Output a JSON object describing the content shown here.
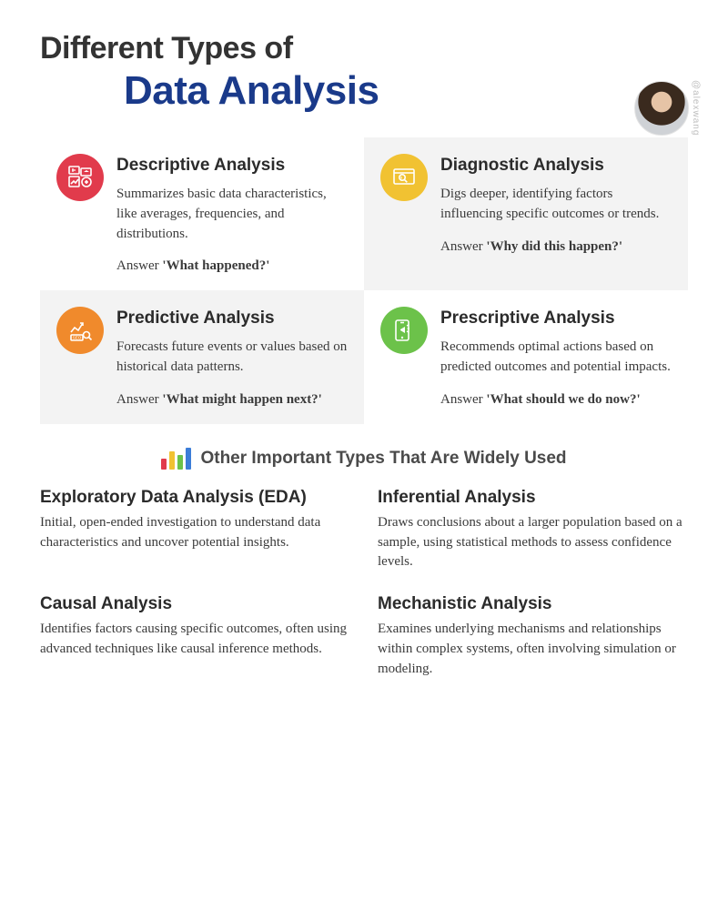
{
  "title_line1": "Different Types of",
  "title_line2": "Data Analysis",
  "handle": "@alexwang",
  "colors": {
    "title1": "#333333",
    "title2": "#1a3a8a",
    "text": "#3a3a3a",
    "card_gray_bg": "#f3f3f3",
    "icon_red": "#e13b4c",
    "icon_yellow": "#f1c232",
    "icon_orange": "#f08a2c",
    "icon_green": "#6cc24a"
  },
  "cards": [
    {
      "title": "Descriptive Analysis",
      "desc": "Summarizes basic data characteristics, like averages, frequencies, and distributions.",
      "answer_prefix": "Answer ",
      "answer_bold": "'What happened?'",
      "icon_color": "#e13b4c",
      "bg": "w",
      "icon": "media"
    },
    {
      "title": "Diagnostic Analysis",
      "desc": "Digs deeper, identifying factors influencing specific outcomes or trends.",
      "answer_prefix": "Answer ",
      "answer_bold": "'Why did this happen?'",
      "icon_color": "#f1c232",
      "bg": "g",
      "icon": "search-screen"
    },
    {
      "title": "Predictive Analysis",
      "desc": "Forecasts future events or values based on historical data patterns.",
      "answer_prefix": "Answer ",
      "answer_bold": "'What might happen next?'",
      "icon_color": "#f08a2c",
      "bg": "g",
      "icon": "trend-seo"
    },
    {
      "title": "Prescriptive Analysis",
      "desc": "Recommends optimal actions based on predicted outcomes and potential impacts.",
      "answer_prefix": "Answer ",
      "answer_bold": "'What should we do now?'",
      "icon_color": "#6cc24a",
      "bg": "w",
      "icon": "megaphone"
    }
  ],
  "section2_title": "Other  Important Types That Are Widely Used",
  "bars_icon_colors": [
    "#e13b4c",
    "#f1c232",
    "#6cc24a",
    "#3b7dd8"
  ],
  "bars_icon_heights": [
    12,
    20,
    16,
    24
  ],
  "others": [
    {
      "title": "Exploratory Data Analysis (EDA)",
      "desc": "Initial, open-ended investigation to understand data characteristics and uncover potential insights."
    },
    {
      "title": "Inferential Analysis",
      "desc": "Draws conclusions about a larger population based on a sample, using statistical methods to assess confidence levels."
    },
    {
      "title": "Causal Analysis",
      "desc": "Identifies factors causing specific outcomes, often using advanced techniques like causal inference methods."
    },
    {
      "title": "Mechanistic Analysis",
      "desc": "Examines underlying mechanisms and relationships within complex systems, often involving simulation or modeling."
    }
  ]
}
